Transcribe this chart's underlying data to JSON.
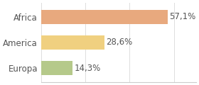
{
  "categories": [
    "Europa",
    "America",
    "Africa"
  ],
  "values": [
    14.3,
    28.6,
    57.1
  ],
  "labels": [
    "14,3%",
    "28,6%",
    "57,1%"
  ],
  "bar_colors": [
    "#b5c98a",
    "#f0d080",
    "#e8a97e"
  ],
  "background_color": "#ffffff",
  "xlim": [
    0,
    70
  ],
  "label_fontsize": 8.5,
  "tick_fontsize": 8.5,
  "bar_height": 0.55
}
